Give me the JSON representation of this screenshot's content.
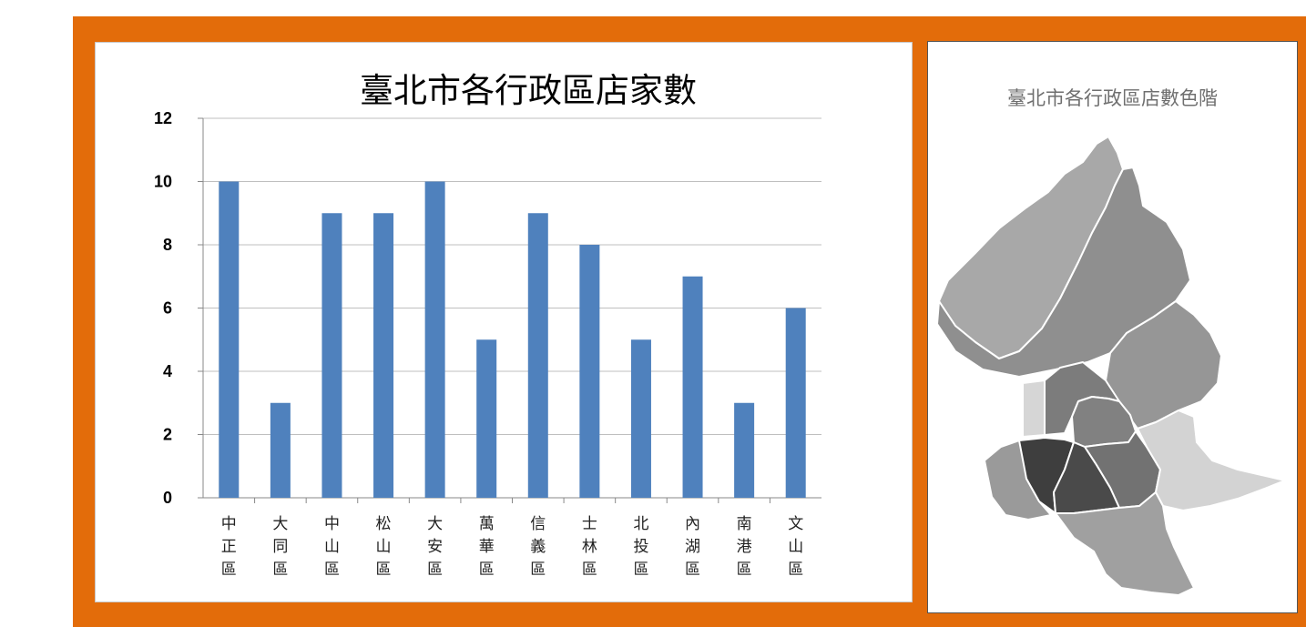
{
  "chart_data": {
    "type": "bar",
    "title": "臺北市各行政區店家數",
    "categories": [
      "中正區",
      "大同區",
      "中山區",
      "松山區",
      "大安區",
      "萬華區",
      "信義區",
      "士林區",
      "北投區",
      "內湖區",
      "南港區",
      "文山區"
    ],
    "values": [
      10,
      3,
      9,
      9,
      10,
      5,
      9,
      8,
      5,
      7,
      3,
      6
    ],
    "ylim": [
      0,
      12
    ],
    "yticks": [
      0,
      2,
      4,
      6,
      8,
      10,
      12
    ],
    "grid": true,
    "bar_color": "#4f81bd"
  },
  "map": {
    "title": "臺北市各行政區店數色階"
  },
  "colors": {
    "frame": "#e36c0a"
  }
}
